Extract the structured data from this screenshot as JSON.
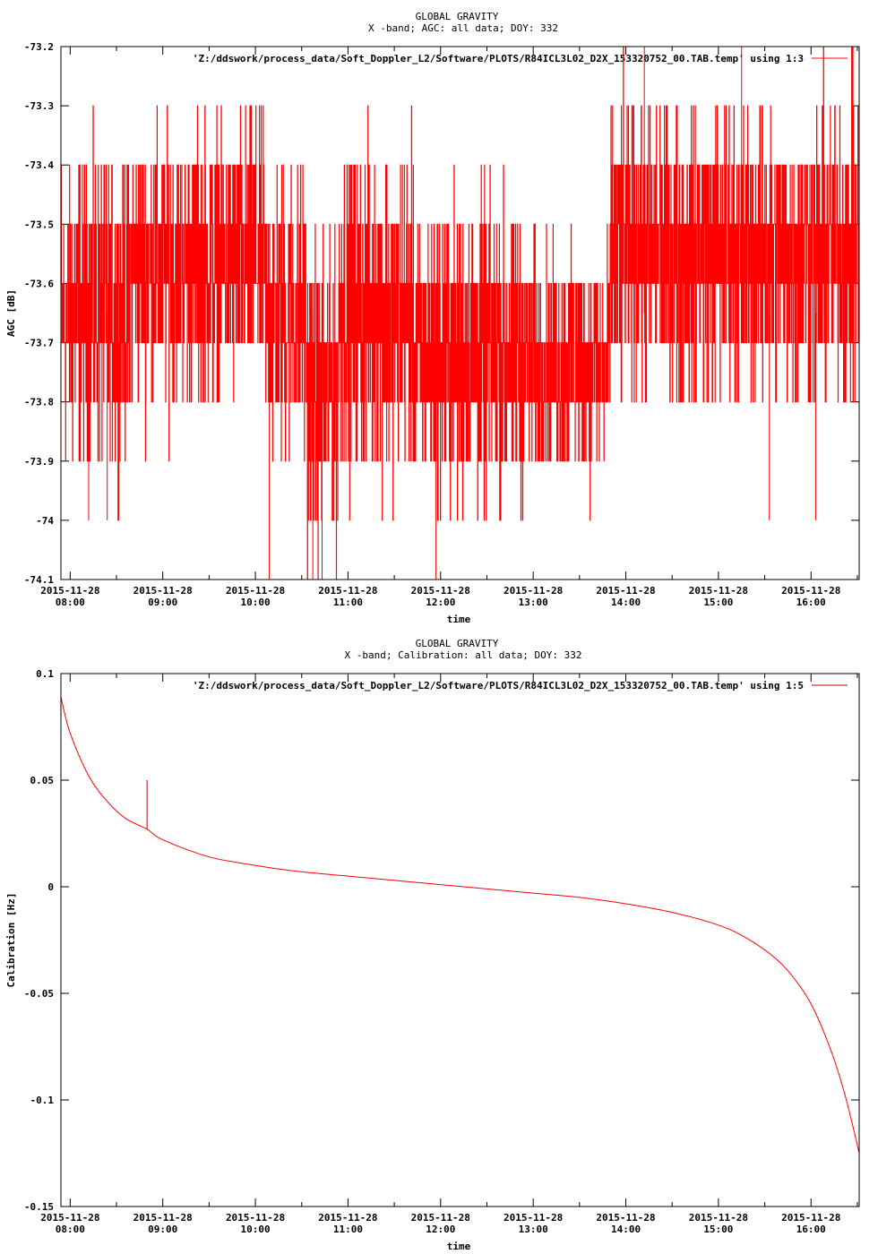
{
  "chart_data": [
    {
      "type": "line",
      "title": "GLOBAL GRAVITY",
      "subtitle": "X -band; AGC: all data; DOY: 332",
      "xlabel": "time",
      "ylabel": "AGC [dB]",
      "legend": "'Z:/ddswork/process_data/Soft_Doppler_L2/Software/PLOTS/R84ICL3L02_D2X_153320752_00.TAB.temp' using 1:3",
      "legend_position": "top-right",
      "color": "#ff0000",
      "ylim": [
        -74.1,
        -73.2
      ],
      "xlim_hours": [
        7.9,
        16.52
      ],
      "yticks": [
        "-73.2",
        "-73.3",
        "-73.4",
        "-73.5",
        "-73.6",
        "-73.7",
        "-73.8",
        "-73.9",
        "-74",
        "-74.1"
      ],
      "ytick_values": [
        -73.2,
        -73.3,
        -73.4,
        -73.5,
        -73.6,
        -73.7,
        -73.8,
        -73.9,
        -74.0,
        -74.1
      ],
      "xtick_date": "2015-11-28",
      "xtick_times": [
        "08:00",
        "09:00",
        "10:00",
        "11:00",
        "12:00",
        "13:00",
        "14:00",
        "15:00",
        "16:00"
      ],
      "xtick_hours": [
        8,
        9,
        10,
        11,
        12,
        13,
        14,
        15,
        16
      ],
      "segments": [
        {
          "start": 7.9,
          "end": 8.65,
          "mean": -73.65,
          "spread": 0.12
        },
        {
          "start": 8.65,
          "end": 10.1,
          "mean": -73.57,
          "spread": 0.11
        },
        {
          "start": 10.1,
          "end": 10.55,
          "mean": -73.65,
          "spread": 0.12
        },
        {
          "start": 10.55,
          "end": 10.9,
          "mean": -73.79,
          "spread": 0.12
        },
        {
          "start": 10.9,
          "end": 11.7,
          "mean": -73.65,
          "spread": 0.13
        },
        {
          "start": 11.7,
          "end": 12.9,
          "mean": -73.72,
          "spread": 0.12
        },
        {
          "start": 12.9,
          "end": 13.83,
          "mean": -73.73,
          "spread": 0.09
        },
        {
          "start": 13.83,
          "end": 16.52,
          "mean": -73.55,
          "spread": 0.12
        }
      ],
      "spikes": [
        {
          "t": 8.2,
          "y": -74.0
        },
        {
          "t": 8.4,
          "y": -74.0
        },
        {
          "t": 10.15,
          "y": -74.1
        },
        {
          "t": 10.62,
          "y": -74.1
        },
        {
          "t": 10.72,
          "y": -74.1
        },
        {
          "t": 11.95,
          "y": -74.1
        },
        {
          "t": 14.2,
          "y": -73.2
        },
        {
          "t": 15.25,
          "y": -73.2
        },
        {
          "t": 15.55,
          "y": -74.0
        },
        {
          "t": 16.05,
          "y": -74.0
        }
      ]
    },
    {
      "type": "line",
      "title": "GLOBAL GRAVITY",
      "subtitle": "X -band; Calibration: all data; DOY: 332",
      "xlabel": "time",
      "ylabel": "Calibration [Hz]",
      "legend": "'Z:/ddswork/process_data/Soft_Doppler_L2/Software/PLOTS/R84ICL3L02_D2X_153320752_00.TAB.temp' using 1:5",
      "legend_position": "top-right",
      "color": "#cc0000",
      "ylim": [
        -0.15,
        0.1
      ],
      "xlim_hours": [
        7.9,
        16.52
      ],
      "yticks": [
        "0.1",
        "0.05",
        "0",
        "-0.05",
        "-0.1",
        "-0.15"
      ],
      "ytick_values": [
        0.1,
        0.05,
        0,
        -0.05,
        -0.1,
        -0.15
      ],
      "xtick_date": "2015-11-28",
      "xtick_times": [
        "08:00",
        "09:00",
        "10:00",
        "11:00",
        "12:00",
        "13:00",
        "14:00",
        "15:00",
        "16:00"
      ],
      "xtick_hours": [
        8,
        9,
        10,
        11,
        12,
        13,
        14,
        15,
        16
      ],
      "points": [
        [
          7.9,
          0.089
        ],
        [
          8.0,
          0.072
        ],
        [
          8.2,
          0.052
        ],
        [
          8.4,
          0.04
        ],
        [
          8.6,
          0.032
        ],
        [
          8.83,
          0.027
        ],
        [
          9.0,
          0.022
        ],
        [
          9.5,
          0.014
        ],
        [
          10.0,
          0.01
        ],
        [
          10.5,
          0.007
        ],
        [
          11.0,
          0.005
        ],
        [
          11.5,
          0.003
        ],
        [
          12.0,
          0.001
        ],
        [
          12.5,
          -0.001
        ],
        [
          13.0,
          -0.003
        ],
        [
          13.5,
          -0.005
        ],
        [
          14.0,
          -0.008
        ],
        [
          14.5,
          -0.012
        ],
        [
          15.0,
          -0.018
        ],
        [
          15.3,
          -0.024
        ],
        [
          15.6,
          -0.033
        ],
        [
          15.8,
          -0.042
        ],
        [
          16.0,
          -0.055
        ],
        [
          16.2,
          -0.075
        ],
        [
          16.35,
          -0.095
        ],
        [
          16.45,
          -0.112
        ],
        [
          16.52,
          -0.125
        ]
      ],
      "spike": {
        "t": 8.83,
        "from": 0.027,
        "to": 0.05
      }
    }
  ]
}
